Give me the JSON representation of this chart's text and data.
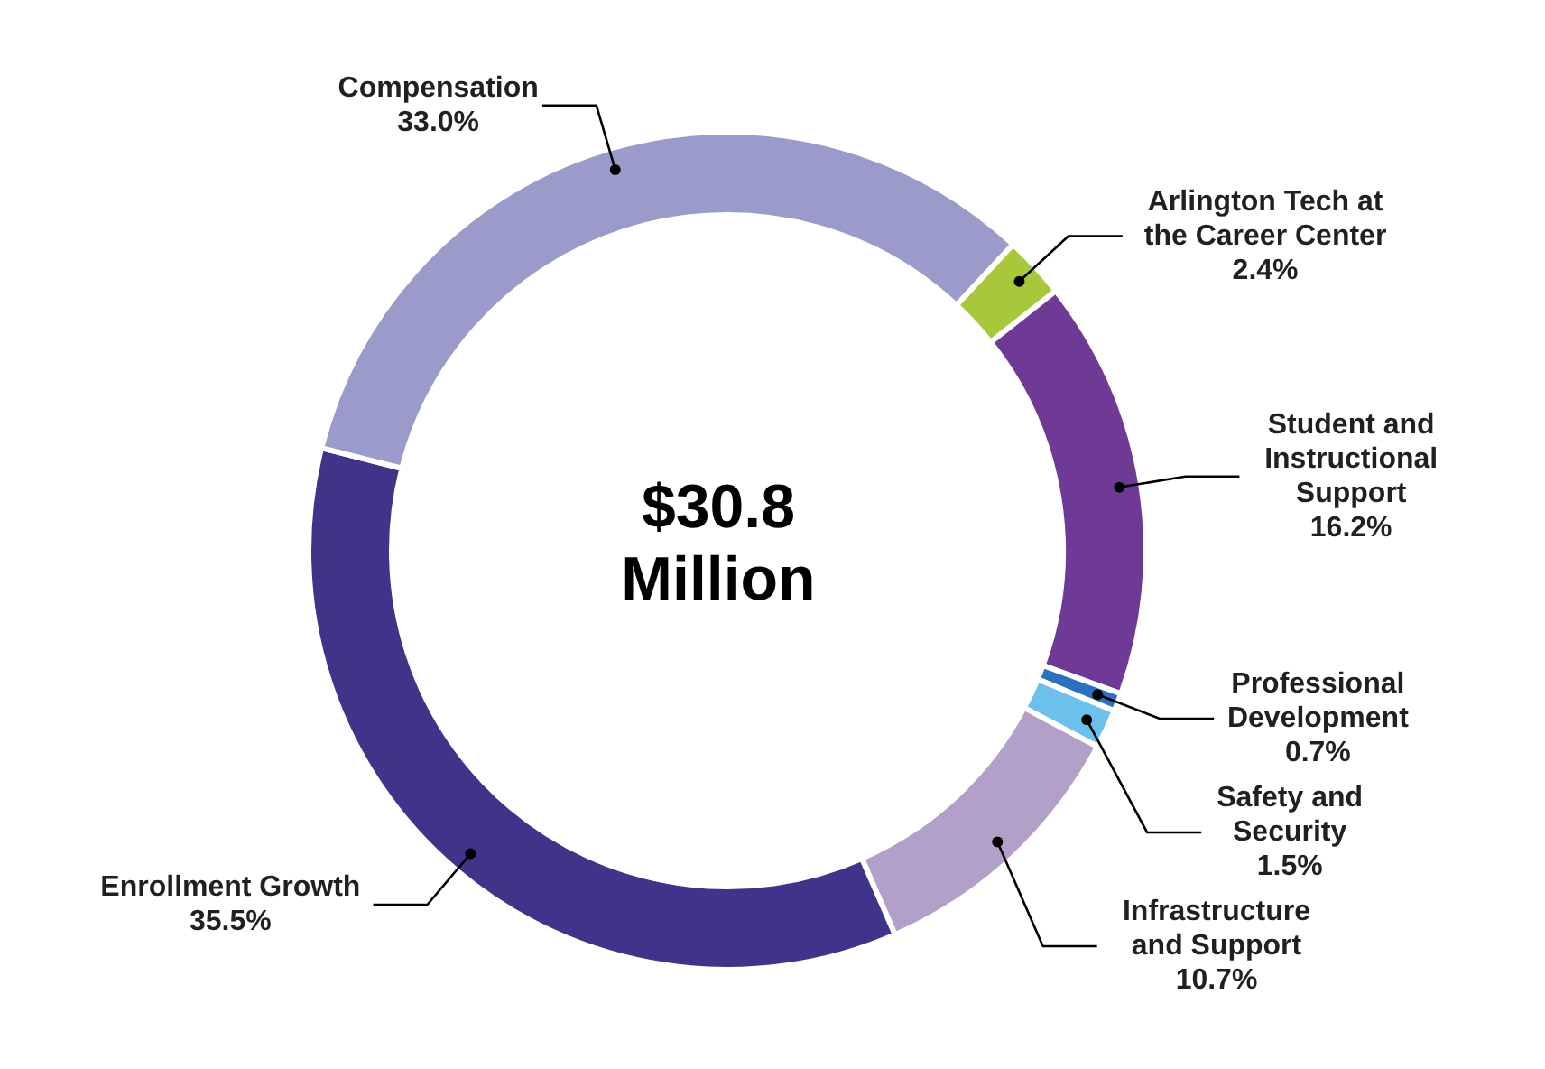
{
  "chart_data": {
    "type": "donut",
    "categories": [
      "Arlington Tech at the Career Center",
      "Student and Instructional Support",
      "Professional Development",
      "Safety and Security",
      "Infrastructure and Support",
      "Enrollment Growth",
      "Compensation"
    ],
    "values": [
      2.4,
      16.2,
      0.7,
      1.5,
      10.7,
      35.5,
      33.0
    ],
    "value_labels": [
      "2.4%",
      "16.2%",
      "0.7%",
      "1.5%",
      "10.7%",
      "35.5%",
      "33.0%"
    ],
    "colors": [
      "#a8c83c",
      "#6e3a96",
      "#2a72c0",
      "#6cc0ec",
      "#b3a0c8",
      "#3f338a",
      "#9a9acb"
    ],
    "annotations": [
      "$30.8 Million"
    ],
    "legend": false
  }
}
